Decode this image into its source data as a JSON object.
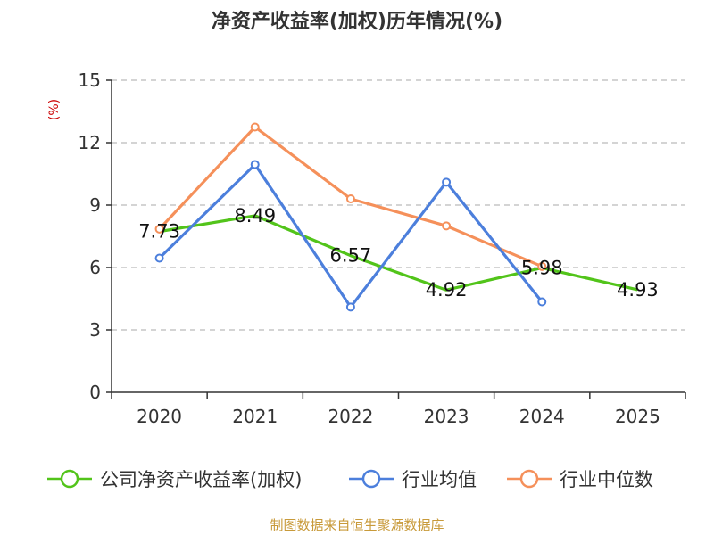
{
  "title": "净资产收益率(加权)历年情况(%)",
  "unit": "(%)",
  "source": "制图数据来自恒生聚源数据库",
  "colors": {
    "roe": "#52c41a",
    "avg": "#4c7fdc",
    "median": "#f5905a",
    "axis": "#333333",
    "grid": "#bbbbbb",
    "unit": "#cc0000",
    "source": "#c89a3a"
  },
  "chart_data": {
    "type": "line",
    "title": "净资产收益率(加权)历年情况(%)",
    "ylabel": "(%)",
    "xlabel": "",
    "categories": [
      "2020",
      "2021",
      "2022",
      "2023",
      "2024",
      "2025"
    ],
    "yticks": [
      "0",
      "3",
      "6",
      "9",
      "12",
      "15"
    ],
    "ylim": [
      0,
      15
    ],
    "grid": true,
    "legend_position": "bottom",
    "series": [
      {
        "key": "roe",
        "name": "公司净资产收益率(加权)",
        "values": [
          7.73,
          8.49,
          6.57,
          4.92,
          5.98,
          4.93
        ],
        "labels": [
          "7.73",
          "8.49",
          "6.57",
          "4.92",
          "5.98",
          "4.93"
        ],
        "markers": false
      },
      {
        "key": "avg",
        "name": "行业均值",
        "values": [
          6.45,
          10.95,
          4.1,
          10.1,
          4.35,
          null
        ],
        "markers": true
      },
      {
        "key": "median",
        "name": "行业中位数",
        "values": [
          7.85,
          12.75,
          9.3,
          8.0,
          6.05,
          null
        ],
        "markers": true
      }
    ]
  }
}
